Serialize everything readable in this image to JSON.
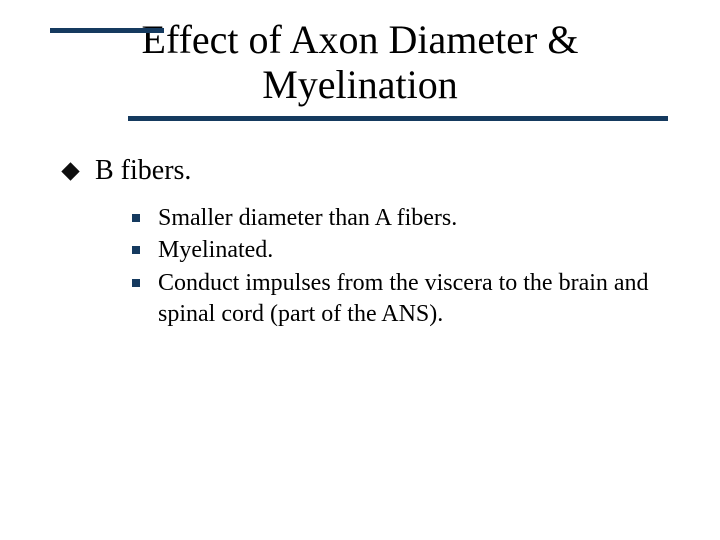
{
  "colors": {
    "accent": "#153a5f",
    "bullet_diamond": "#0e0e0e",
    "bullet_square": "#153a5f",
    "text": "#000000",
    "background": "#ffffff"
  },
  "title": {
    "line1": "Effect of Axon Diameter &",
    "line2": "Myelination",
    "fontsize": 40
  },
  "bullets": {
    "level1": [
      {
        "text": "B fibers."
      }
    ],
    "level2": [
      {
        "text": "Smaller diameter than A fibers."
      },
      {
        "text": "Myelinated."
      },
      {
        "text": "Conduct impulses from the viscera to the brain and spinal cord (part of the ANS)."
      }
    ],
    "level1_fontsize": 28,
    "level2_fontsize": 24
  }
}
